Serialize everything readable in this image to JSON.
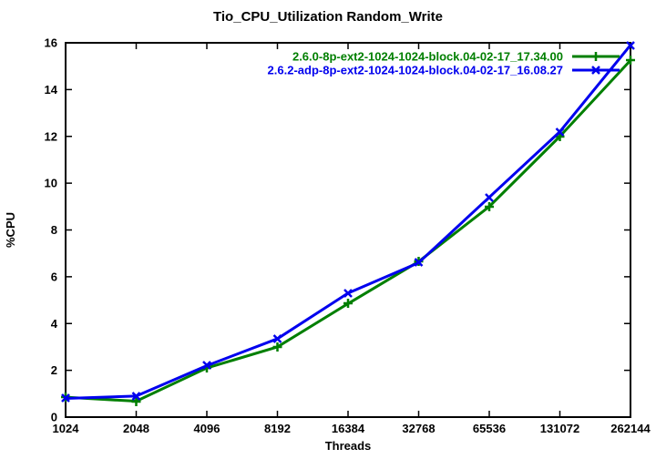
{
  "window": {
    "title": "Tio_CPU_Utilization Random_Write"
  },
  "chart_data": {
    "type": "line",
    "title": "Tio_CPU_Utilization Random_Write",
    "xlabel": "Threads",
    "ylabel": "%CPU",
    "categories": [
      "1024",
      "2048",
      "4096",
      "8192",
      "16384",
      "32768",
      "65536",
      "131072",
      "262144"
    ],
    "x_scale": "log2 (ticks evenly spaced)",
    "ylim": [
      0,
      16
    ],
    "y_ticks": [
      0,
      2,
      4,
      6,
      8,
      10,
      12,
      14,
      16
    ],
    "grid": false,
    "legend_position": "top-right-inside",
    "border_color": "#000000",
    "series": [
      {
        "name": "2.6.0-8p-ext2-1024-1024-block.04-02-17_17.34.00",
        "color": "#007f00",
        "marker": "plus",
        "values": [
          0.85,
          0.68,
          2.1,
          3.0,
          4.85,
          6.65,
          9.0,
          12.0,
          15.25
        ]
      },
      {
        "name": "2.6.2-adp-8p-ext2-1024-1024-block.04-02-17_16.08.27",
        "color": "#0000ee",
        "marker": "cross",
        "values": [
          0.8,
          0.9,
          2.2,
          3.35,
          5.3,
          6.6,
          9.4,
          12.2,
          15.9
        ]
      }
    ]
  }
}
